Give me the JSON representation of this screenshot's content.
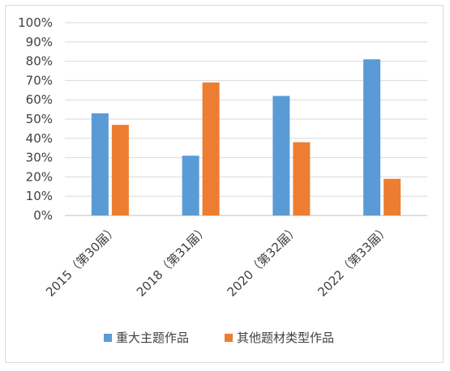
{
  "chart_data": {
    "type": "bar",
    "title": "",
    "xlabel": "",
    "ylabel": "",
    "ylim": [
      0,
      100
    ],
    "y_ticks": [
      "0%",
      "10%",
      "20%",
      "30%",
      "40%",
      "50%",
      "60%",
      "70%",
      "80%",
      "90%",
      "100%"
    ],
    "categories": [
      "2015（第30届）",
      "2018（第31届）",
      "2020（第32届）",
      "2022（第33届）"
    ],
    "series": [
      {
        "name": "重大主题作品",
        "color": "#5b9bd5",
        "values": [
          53,
          31,
          62,
          81
        ]
      },
      {
        "name": "其他题材类型作品",
        "color": "#ed7d31",
        "values": [
          47,
          69,
          38,
          19
        ]
      }
    ],
    "grid": true,
    "legend_position": "bottom"
  }
}
